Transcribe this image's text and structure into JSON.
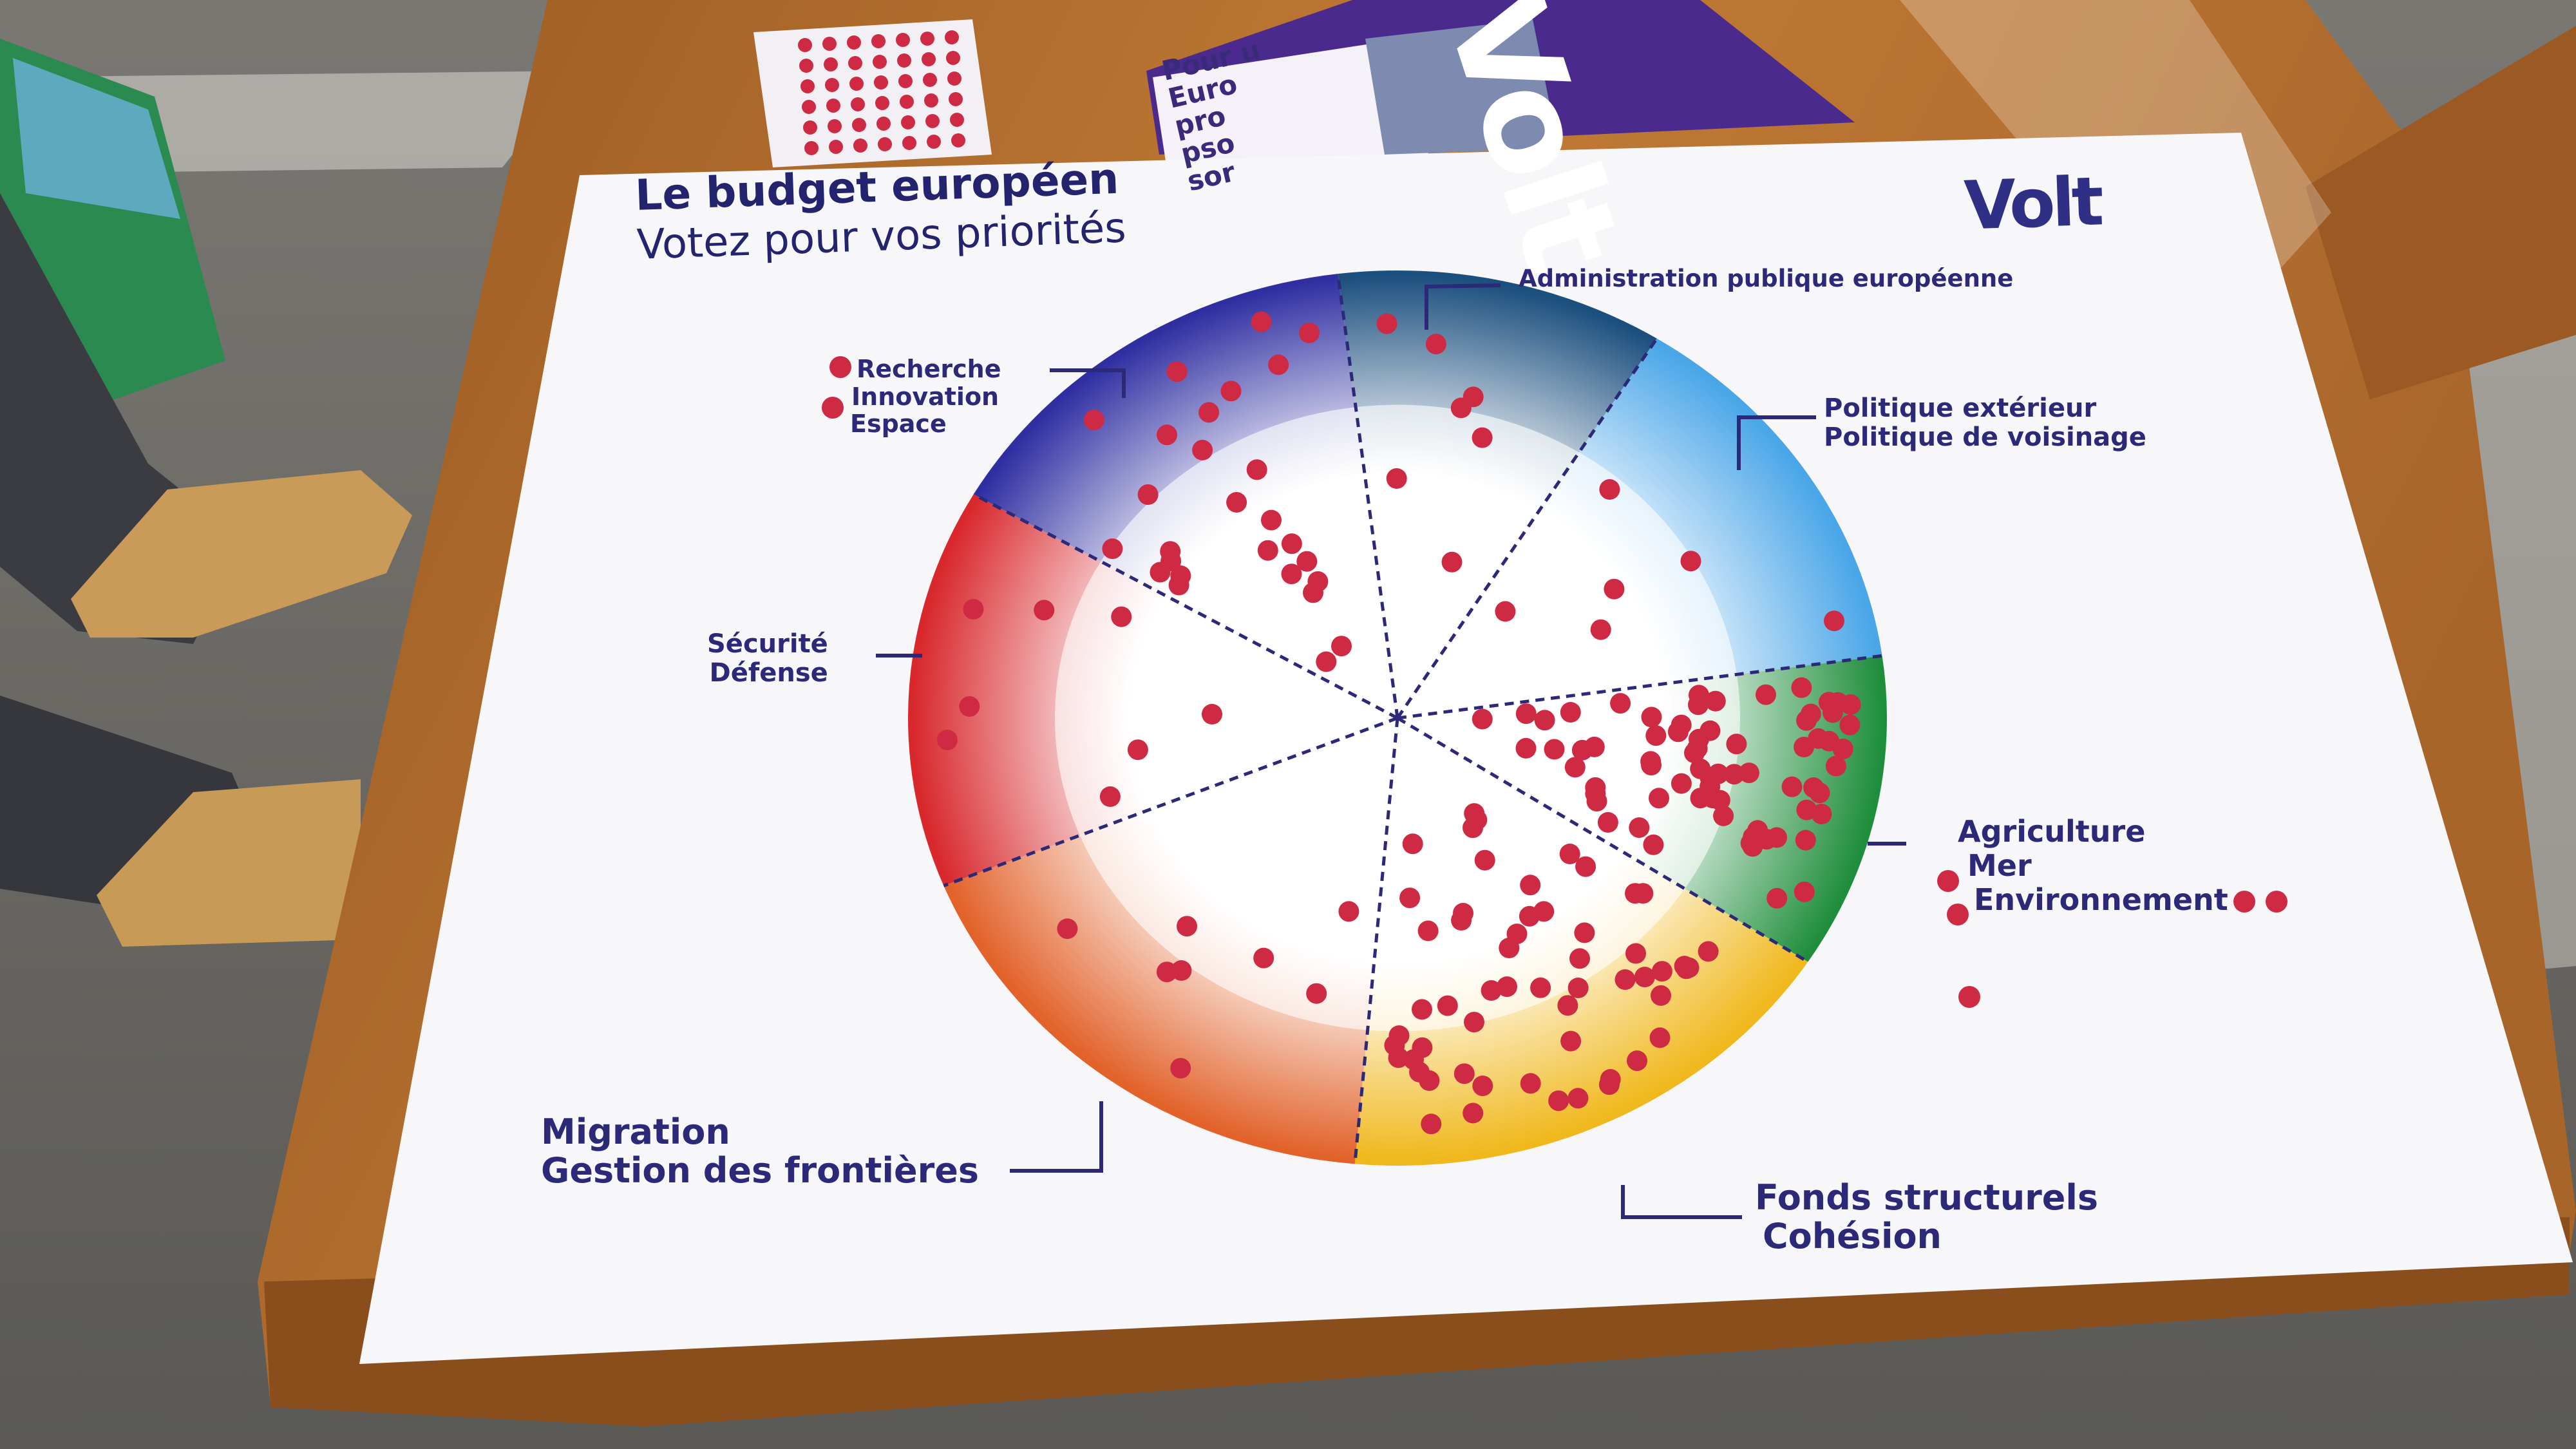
{
  "poster": {
    "title": "Le budget européen",
    "subtitle": "Votez pour vos priorités",
    "logo": "Volt"
  },
  "leaflet": {
    "logo": "Volt",
    "text_lines": [
      "Pour u",
      "Euro",
      "pro",
      "pso",
      "sor"
    ]
  },
  "pie_chart": {
    "type": "pie",
    "segments": [
      {
        "id": "administration",
        "lines": [
          "Administration publique européenne"
        ],
        "color": "#1b4f7e",
        "dots": 7
      },
      {
        "id": "exterieur",
        "lines": [
          "Politique extérieur",
          "Politique de voisinage"
        ],
        "color": "#4aa6e8",
        "dots": 6
      },
      {
        "id": "agriculture",
        "lines": [
          "Agriculture",
          "Mer",
          "Environnement"
        ],
        "color": "#1f8e3c",
        "dots": 70
      },
      {
        "id": "fonds",
        "lines": [
          "Fonds structurels",
          "Cohésion"
        ],
        "color": "#f0b81c",
        "dots": 56
      },
      {
        "id": "migration",
        "lines": [
          "Migration",
          "Gestion des frontières"
        ],
        "color": "#e2622a",
        "dots": 8
      },
      {
        "id": "securite",
        "lines": [
          "Sécurité",
          "Défense"
        ],
        "color": "#d8282c",
        "dots": 8
      },
      {
        "id": "recherche",
        "lines": [
          "Recherche",
          "Innovation",
          "Espace"
        ],
        "color": "#2f2fa2",
        "dots": 27
      }
    ]
  },
  "colors": {
    "sticker_red": "#cf2a44",
    "text_navy": "#2c2a78",
    "table_wood": "#b06a2a",
    "poster_white": "#f7f7fa",
    "leaflet_purple": "#4b2a8e"
  }
}
